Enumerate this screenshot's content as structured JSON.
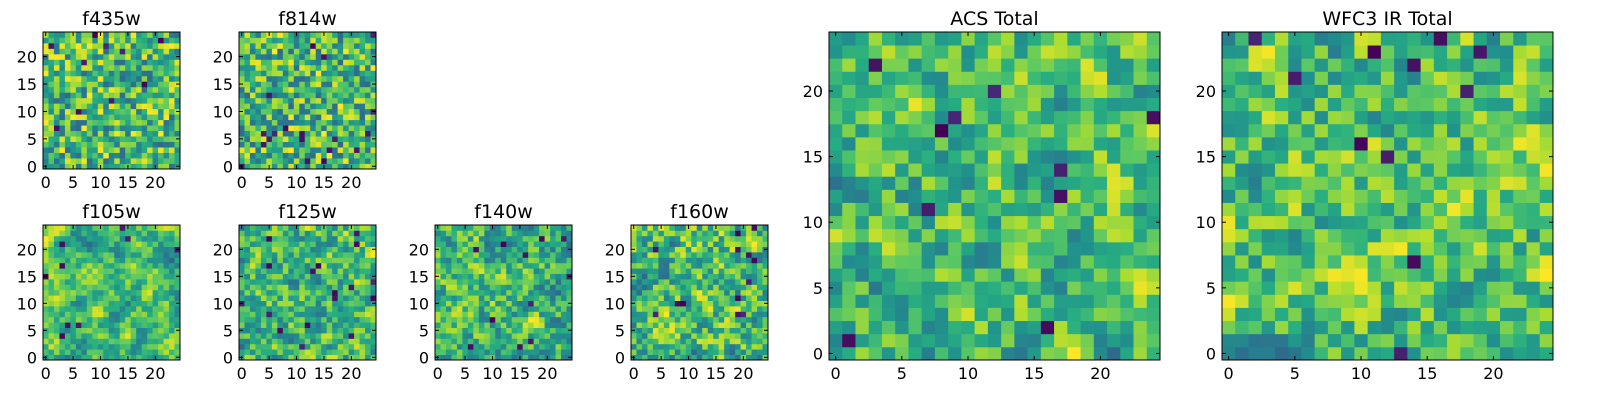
{
  "chart_data": [
    {
      "type": "heatmap",
      "title": "f435w",
      "colormap": "viridis",
      "grid_size": 25,
      "x_ticks": [
        0,
        5,
        10,
        15,
        20
      ],
      "y_ticks": [
        0,
        5,
        10,
        15,
        20
      ],
      "xlim": [
        0,
        24
      ],
      "ylim": [
        0,
        24
      ],
      "grid": false
    },
    {
      "type": "heatmap",
      "title": "f814w",
      "colormap": "viridis",
      "grid_size": 25,
      "x_ticks": [
        0,
        5,
        10,
        15,
        20
      ],
      "y_ticks": [
        0,
        5,
        10,
        15,
        20
      ],
      "xlim": [
        0,
        24
      ],
      "ylim": [
        0,
        24
      ],
      "grid": false
    },
    {
      "type": "heatmap",
      "title": "f105w",
      "colormap": "viridis",
      "grid_size": 25,
      "x_ticks": [
        0,
        5,
        10,
        15,
        20
      ],
      "y_ticks": [
        0,
        5,
        10,
        15,
        20
      ],
      "xlim": [
        0,
        24
      ],
      "ylim": [
        0,
        24
      ],
      "grid": false
    },
    {
      "type": "heatmap",
      "title": "f125w",
      "colormap": "viridis",
      "grid_size": 25,
      "x_ticks": [
        0,
        5,
        10,
        15,
        20
      ],
      "y_ticks": [
        0,
        5,
        10,
        15,
        20
      ],
      "xlim": [
        0,
        24
      ],
      "ylim": [
        0,
        24
      ],
      "grid": false
    },
    {
      "type": "heatmap",
      "title": "f140w",
      "colormap": "viridis",
      "grid_size": 25,
      "x_ticks": [
        0,
        5,
        10,
        15,
        20
      ],
      "y_ticks": [
        0,
        5,
        10,
        15,
        20
      ],
      "xlim": [
        0,
        24
      ],
      "ylim": [
        0,
        24
      ],
      "grid": false
    },
    {
      "type": "heatmap",
      "title": "f160w",
      "colormap": "viridis",
      "grid_size": 25,
      "x_ticks": [
        0,
        5,
        10,
        15,
        20
      ],
      "y_ticks": [
        0,
        5,
        10,
        15,
        20
      ],
      "xlim": [
        0,
        24
      ],
      "ylim": [
        0,
        24
      ],
      "grid": false
    },
    {
      "type": "heatmap",
      "title": "ACS Total",
      "colormap": "viridis",
      "grid_size": 25,
      "x_ticks": [
        0,
        5,
        10,
        15,
        20
      ],
      "y_ticks": [
        0,
        5,
        10,
        15,
        20
      ],
      "xlim": [
        0,
        24
      ],
      "ylim": [
        0,
        24
      ],
      "grid": false
    },
    {
      "type": "heatmap",
      "title": "WFC3 IR Total",
      "colormap": "viridis",
      "grid_size": 25,
      "x_ticks": [
        0,
        5,
        10,
        15,
        20
      ],
      "y_ticks": [
        0,
        5,
        10,
        15,
        20
      ],
      "xlim": [
        0,
        24
      ],
      "ylim": [
        0,
        24
      ],
      "grid": false
    }
  ]
}
